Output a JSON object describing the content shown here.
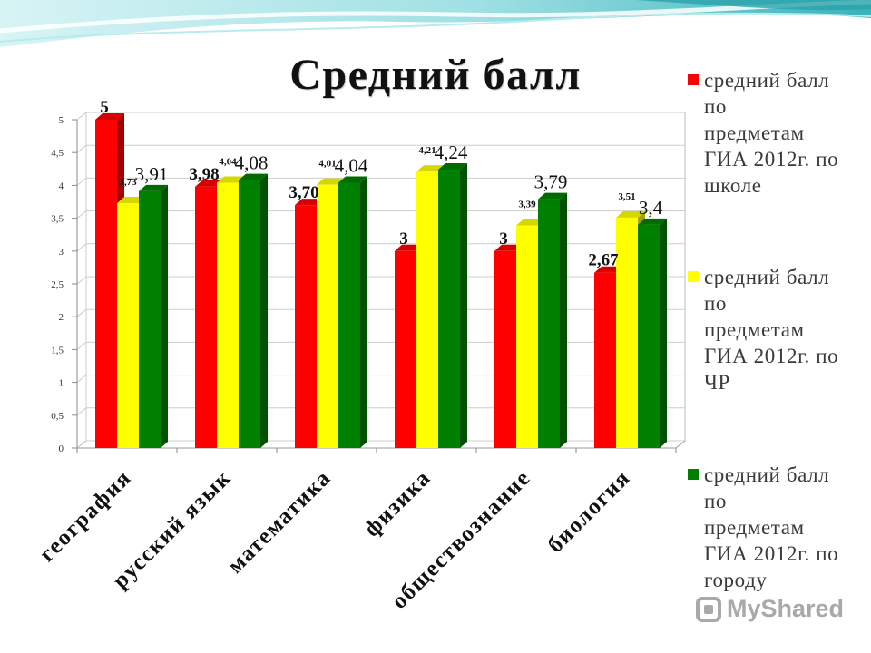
{
  "chart_data": {
    "type": "bar",
    "three_d": true,
    "title": "Средний балл",
    "categories": [
      "география",
      "русский язык",
      "математика",
      "физика",
      "обществознание",
      "биология"
    ],
    "series": [
      {
        "name": "средний балл\nпо\nпредметам\nГИА 2012г. по\nшколе",
        "color": "#ff0000",
        "values": [
          5,
          3.98,
          3.7,
          3,
          3,
          2.67
        ],
        "labels": [
          "5",
          "3,98",
          "3,70",
          "3",
          "3",
          "2,67"
        ]
      },
      {
        "name": "средний балл\nпо\nпредметам\nГИА 2012г. по\nЧР",
        "color": "#ffff00",
        "values": [
          3.73,
          4.04,
          4.01,
          4.21,
          3.39,
          3.51
        ],
        "labels": [
          "3,73",
          "4,04",
          "4,01",
          "4,21",
          "3,39",
          "3,51"
        ]
      },
      {
        "name": "средний балл\nпо\nпредметам\nГИА 2012г. по\nгороду",
        "color": "#008000",
        "values": [
          3.91,
          4.08,
          4.04,
          4.24,
          3.79,
          3.4
        ],
        "labels": [
          "3,91",
          "4,08",
          "4,04",
          "4,24",
          "3,79",
          "3,4"
        ]
      }
    ],
    "ylim": [
      0,
      5
    ],
    "yticks": [
      "0",
      "0,5",
      "1",
      "1,5",
      "2",
      "2,5",
      "3",
      "3,5",
      "4",
      "4,5",
      "5"
    ],
    "grid": true,
    "legend_position": "right"
  },
  "watermark": {
    "text": "MyShared"
  }
}
